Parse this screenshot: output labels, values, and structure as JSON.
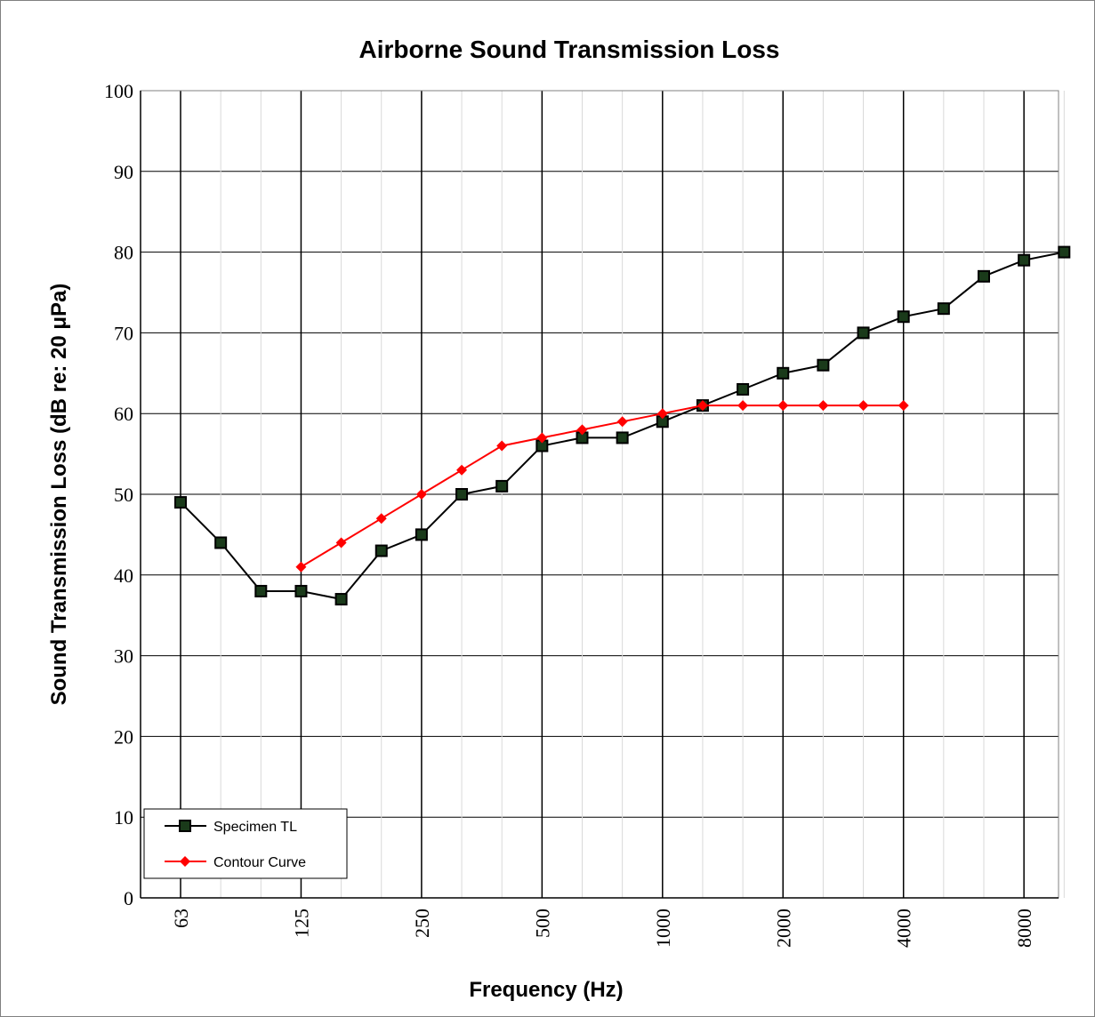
{
  "chart_data": {
    "type": "line",
    "title": "Airborne Sound Transmission Loss",
    "xlabel": "Frequency (Hz)",
    "ylabel": "Sound Transmission Loss (dB re: 20 μPa)",
    "ylim": [
      0,
      100
    ],
    "y_ticks": [
      "0",
      "10",
      "20",
      "30",
      "40",
      "50",
      "60",
      "70",
      "80",
      "90",
      "100"
    ],
    "x_scale": "log (one-third-octave bands)",
    "x_tick_labels": [
      "63",
      "125",
      "250",
      "500",
      "1000",
      "2000",
      "4000",
      "8000"
    ],
    "categories": [
      63,
      80,
      100,
      125,
      160,
      200,
      250,
      315,
      400,
      500,
      630,
      800,
      1000,
      1250,
      1600,
      2000,
      2500,
      3150,
      4000,
      5000,
      6300,
      8000,
      10000
    ],
    "grid": true,
    "legend_position": "bottom-left",
    "series": [
      {
        "name": "Specimen TL",
        "color": "#000000",
        "marker": "square",
        "marker_fill": "#1a3a1a",
        "values": [
          49,
          44,
          38,
          38,
          37,
          43,
          45,
          50,
          51,
          56,
          57,
          57,
          59,
          61,
          63,
          65,
          66,
          70,
          72,
          73,
          77,
          79,
          80
        ]
      },
      {
        "name": "Contour Curve",
        "color": "#ff0000",
        "marker": "diamond",
        "values": [
          null,
          null,
          null,
          41,
          44,
          47,
          50,
          53,
          56,
          57,
          58,
          59,
          60,
          61,
          61,
          61,
          61,
          61,
          61,
          null,
          null,
          null,
          null
        ]
      }
    ]
  }
}
